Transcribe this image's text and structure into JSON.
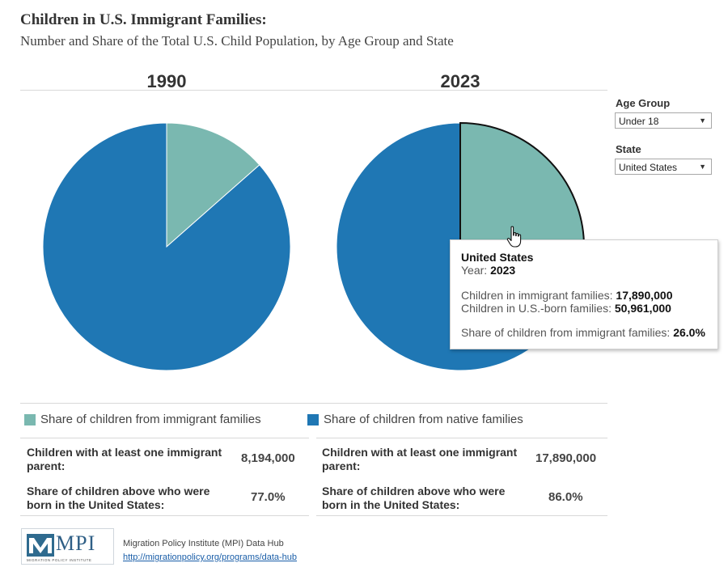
{
  "header": {
    "title": "Children in U.S. Immigrant Families:",
    "subtitle": "Number and Share of the Total U.S. Child Population, by Age Group and State"
  },
  "controls": {
    "age_group_label": "Age Group",
    "age_group_value": "Under 18",
    "state_label": "State",
    "state_value": "United States"
  },
  "colors": {
    "immigrant": "#7ab8b0",
    "native": "#1f77b4"
  },
  "chart_data": [
    {
      "type": "pie",
      "title": "1990",
      "slices": [
        {
          "name": "Share of children from immigrant families",
          "value": 13.5
        },
        {
          "name": "Share of children from native families",
          "value": 86.5
        }
      ]
    },
    {
      "type": "pie",
      "title": "2023",
      "slices": [
        {
          "name": "Share of children from immigrant families",
          "value": 26.0
        },
        {
          "name": "Share of children from native families",
          "value": 74.0
        }
      ],
      "highlighted_slice": "Share of children from immigrant families"
    }
  ],
  "legend": {
    "immigrant": "Share of children from immigrant families",
    "native": "Share of children from native families"
  },
  "stats": [
    {
      "row1_label_a": "Children with at least one immigrant",
      "row1_label_b": "parent:",
      "row1_value": "8,194,000",
      "row2_label_a": "Share of children above who were",
      "row2_label_b": "born in the United States:",
      "row2_value": "77.0%"
    },
    {
      "row1_label_a": "Children with at least one immigrant",
      "row1_label_b": "parent:",
      "row1_value": "17,890,000",
      "row2_label_a": "Share of children above who were",
      "row2_label_b": "born in the United States:",
      "row2_value": "86.0%"
    }
  ],
  "tooltip": {
    "title": "United States",
    "year_label": "Year:",
    "year_value": "2023",
    "immigrant_label": "Children in immigrant families:",
    "immigrant_value": "17,890,000",
    "native_label": "Children in U.S.-born families:",
    "native_value": "50,961,000",
    "share_label": "Share of children from immigrant families:",
    "share_value": "26.0%"
  },
  "footer": {
    "logo_text": "MPI",
    "logo_subtext": "MIGRATION POLICY INSTITUTE",
    "source": "Migration Policy Institute (MPI) Data Hub",
    "link": "http://migrationpolicy.org/programs/data-hub"
  }
}
